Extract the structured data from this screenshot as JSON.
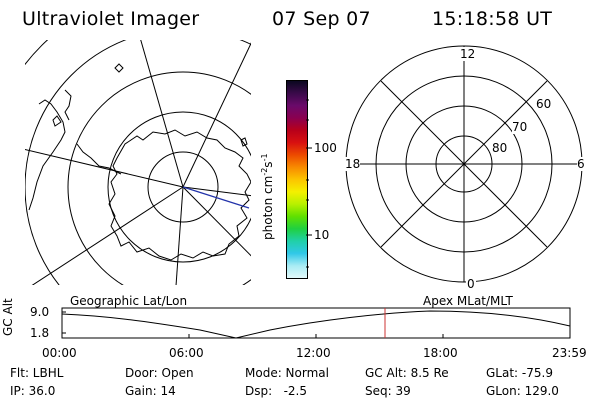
{
  "header": {
    "instrument": "Ultraviolet Imager",
    "date": "07 Sep 07",
    "time": "15:18:58 UT"
  },
  "colorbar": {
    "unit_label": "photon cm",
    "unit_exp1": "-2",
    "unit_mid": "s",
    "unit_exp2": "-1",
    "ticks": [
      "100",
      "10"
    ],
    "colors": [
      "#0b0820",
      "#3a0a4a",
      "#6a0a6a",
      "#8a0050",
      "#b8001a",
      "#d81010",
      "#ec4a00",
      "#f88a00",
      "#fcc400",
      "#f4f000",
      "#b8f000",
      "#60e000",
      "#20d040",
      "#20d0a8",
      "#30c8e8",
      "#a8ecf4",
      "#e2f8fa"
    ]
  },
  "geo_map": {
    "label": "Geographic Lat/Lon"
  },
  "polar_plot": {
    "label": "Apex MLat/MLT",
    "mlt_labels": [
      "12",
      "18",
      "6",
      "0"
    ],
    "lat_labels": [
      "60",
      "70",
      "80"
    ]
  },
  "timeline": {
    "y_label": "GC Alt",
    "y_ticks": [
      "9.0",
      "1.8"
    ],
    "x_ticks": [
      "00:00",
      "06:00",
      "12:00",
      "18:00",
      "23:59"
    ],
    "marker_color": "#cc3333"
  },
  "info": {
    "filter": "Flt: LBHL",
    "door": "Door: Open",
    "mode": "Mode: Normal",
    "gc_alt": "GC Alt: 8.5 Re",
    "glat": "GLat: -75.9",
    "ip": "IP: 36.0",
    "gain": "Gain: 14",
    "dsp": "Dsp:   -2.5",
    "seq": "Seq: 39",
    "glon": "GLon: 129.0"
  }
}
